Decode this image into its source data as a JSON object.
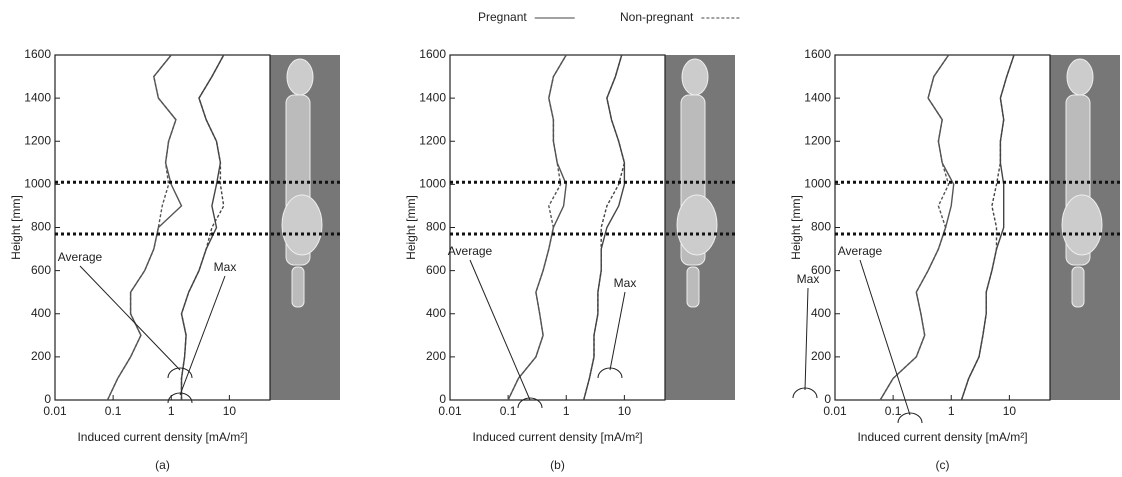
{
  "legend": {
    "series": [
      {
        "name": "Pregnant",
        "dash": "solid"
      },
      {
        "name": "Non-pregnant",
        "dash": "dashed"
      }
    ]
  },
  "chart_data": [
    {
      "type": "line",
      "caption": "(a)",
      "xlabel": "Induced current density [mA/m²]",
      "ylabel": "Height [mm]",
      "log_x": true,
      "xlim": [
        0.01,
        50
      ],
      "xticks": [
        0.01,
        0.1,
        1,
        10
      ],
      "ylim": [
        0,
        1600
      ],
      "yticks": [
        0,
        200,
        400,
        600,
        800,
        1000,
        1200,
        1400,
        1600
      ],
      "reference_heights": [
        1010,
        770
      ],
      "annotations": [
        "Average",
        "Max"
      ],
      "heights": [
        0,
        100,
        200,
        300,
        400,
        500,
        600,
        700,
        800,
        900,
        1000,
        1100,
        1200,
        1300,
        1400,
        1500,
        1600
      ],
      "series": [
        {
          "legend": 0,
          "annotation": 0,
          "color": "#555555",
          "values": [
            0.08,
            0.12,
            0.2,
            0.3,
            0.2,
            0.2,
            0.35,
            0.5,
            0.6,
            1.5,
            1.0,
            0.8,
            0.9,
            1.2,
            0.6,
            0.5,
            1.0
          ]
        },
        {
          "legend": 1,
          "annotation": 0,
          "color": "#555555",
          "values": [
            0.08,
            0.12,
            0.2,
            0.3,
            0.2,
            0.2,
            0.35,
            0.5,
            0.6,
            0.7,
            0.9,
            0.8,
            0.9,
            1.2,
            0.6,
            0.5,
            1.0
          ]
        },
        {
          "legend": 0,
          "annotation": 1,
          "color": "#444444",
          "values": [
            1.5,
            1.5,
            1.7,
            1.8,
            1.5,
            2,
            3,
            4,
            6,
            5,
            6,
            7,
            6,
            4,
            3,
            5,
            8
          ]
        },
        {
          "legend": 1,
          "annotation": 1,
          "color": "#444444",
          "values": [
            1.5,
            1.5,
            1.7,
            1.8,
            1.5,
            2,
            3,
            4,
            5,
            8,
            7,
            7,
            6,
            4,
            3,
            5,
            8
          ]
        }
      ]
    },
    {
      "type": "line",
      "caption": "(b)",
      "xlabel": "Induced current density [mA/m²]",
      "ylabel": "Height [mm]",
      "log_x": true,
      "xlim": [
        0.01,
        50
      ],
      "xticks": [
        0.01,
        0.1,
        1,
        10
      ],
      "ylim": [
        0,
        1600
      ],
      "yticks": [
        0,
        200,
        400,
        600,
        800,
        1000,
        1200,
        1400,
        1600
      ],
      "reference_heights": [
        1010,
        770
      ],
      "annotations": [
        "Average",
        "Max"
      ],
      "heights": [
        0,
        100,
        200,
        300,
        400,
        500,
        600,
        700,
        800,
        900,
        1000,
        1100,
        1200,
        1300,
        1400,
        1500,
        1600
      ],
      "series": [
        {
          "legend": 0,
          "annotation": 0,
          "color": "#555555",
          "values": [
            0.1,
            0.15,
            0.3,
            0.4,
            0.35,
            0.3,
            0.4,
            0.5,
            0.6,
            0.9,
            1.0,
            0.7,
            0.6,
            0.6,
            0.5,
            0.6,
            1.0
          ]
        },
        {
          "legend": 1,
          "annotation": 0,
          "color": "#555555",
          "values": [
            0.1,
            0.15,
            0.3,
            0.4,
            0.35,
            0.3,
            0.4,
            0.5,
            0.6,
            0.5,
            0.8,
            0.7,
            0.6,
            0.6,
            0.5,
            0.6,
            1.0
          ]
        },
        {
          "legend": 0,
          "annotation": 1,
          "color": "#444444",
          "values": [
            2,
            2.5,
            3,
            3,
            3.5,
            3.5,
            4,
            4,
            5,
            8,
            10,
            10,
            8,
            6,
            5,
            7,
            9
          ]
        },
        {
          "legend": 1,
          "annotation": 1,
          "color": "#444444",
          "values": [
            2,
            2.5,
            3,
            3,
            3.5,
            3.5,
            4,
            4,
            4,
            5,
            8,
            10,
            8,
            6,
            5,
            7,
            9
          ]
        }
      ]
    },
    {
      "type": "line",
      "caption": "(c)",
      "xlabel": "Induced current density [mA/m²]",
      "ylabel": "Height [mm]",
      "log_x": true,
      "xlim": [
        0.01,
        50
      ],
      "xticks": [
        0.01,
        0.1,
        1,
        10
      ],
      "ylim": [
        0,
        1600
      ],
      "yticks": [
        0,
        200,
        400,
        600,
        800,
        1000,
        1200,
        1400,
        1600
      ],
      "reference_heights": [
        1010,
        770
      ],
      "annotations": [
        "Average",
        "Max"
      ],
      "heights": [
        0,
        100,
        200,
        300,
        400,
        500,
        600,
        700,
        800,
        900,
        1000,
        1100,
        1200,
        1300,
        1400,
        1500,
        1600
      ],
      "series": [
        {
          "legend": 0,
          "annotation": 0,
          "color": "#555555",
          "values": [
            0.06,
            0.1,
            0.25,
            0.35,
            0.3,
            0.25,
            0.4,
            0.6,
            0.8,
            1.0,
            1.1,
            0.7,
            0.6,
            0.7,
            0.4,
            0.5,
            0.9
          ]
        },
        {
          "legend": 1,
          "annotation": 0,
          "color": "#555555",
          "values": [
            0.06,
            0.1,
            0.25,
            0.35,
            0.3,
            0.25,
            0.4,
            0.6,
            0.8,
            0.6,
            0.9,
            0.7,
            0.6,
            0.7,
            0.4,
            0.5,
            0.9
          ]
        },
        {
          "legend": 0,
          "annotation": 1,
          "color": "#444444",
          "values": [
            1.5,
            2,
            3,
            3.5,
            4,
            4,
            5,
            6,
            8,
            8,
            8,
            7,
            7,
            8,
            7,
            9,
            12
          ]
        },
        {
          "legend": 1,
          "annotation": 1,
          "color": "#444444",
          "values": [
            1.5,
            2,
            3,
            3.5,
            4,
            4,
            5,
            6,
            6,
            5,
            6,
            7,
            7,
            8,
            7,
            9,
            12
          ]
        }
      ]
    }
  ]
}
